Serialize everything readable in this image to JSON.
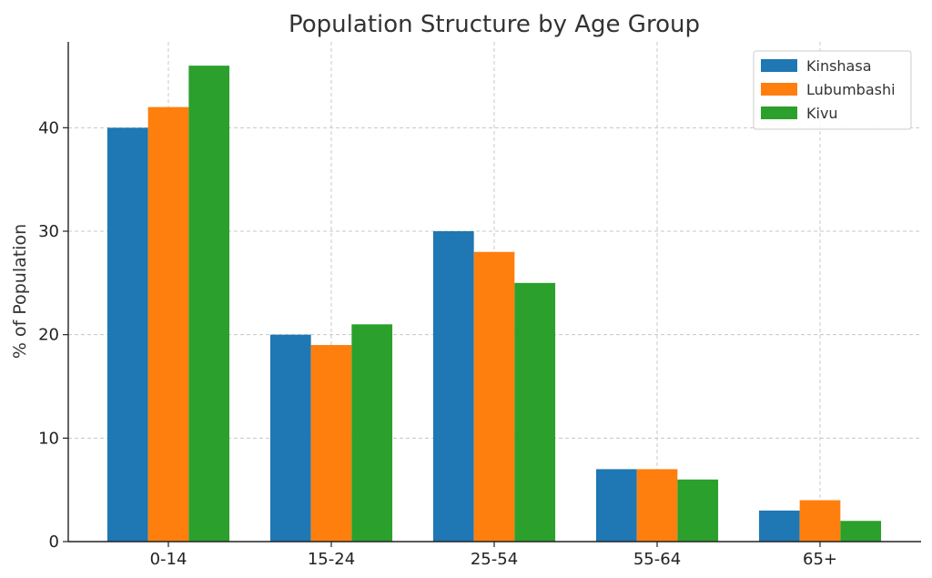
{
  "chart_data": {
    "type": "bar",
    "title": "Population Structure by Age Group",
    "xlabel": "",
    "ylabel": "% of Population",
    "categories": [
      "0-14",
      "15-24",
      "25-54",
      "55-64",
      "65+"
    ],
    "series": [
      {
        "name": "Kinshasa",
        "color": "#1f77b4",
        "values": [
          40,
          20,
          30,
          7,
          3
        ]
      },
      {
        "name": "Lubumbashi",
        "color": "#ff7f0e",
        "values": [
          42,
          19,
          28,
          7,
          4
        ]
      },
      {
        "name": "Kivu",
        "color": "#2ca02c",
        "values": [
          46,
          21,
          25,
          6,
          2
        ]
      }
    ],
    "ylim": [
      0,
      48.3
    ],
    "yticks": [
      0,
      10,
      20,
      30,
      40
    ],
    "grid": true,
    "legend_position": "top-right"
  }
}
